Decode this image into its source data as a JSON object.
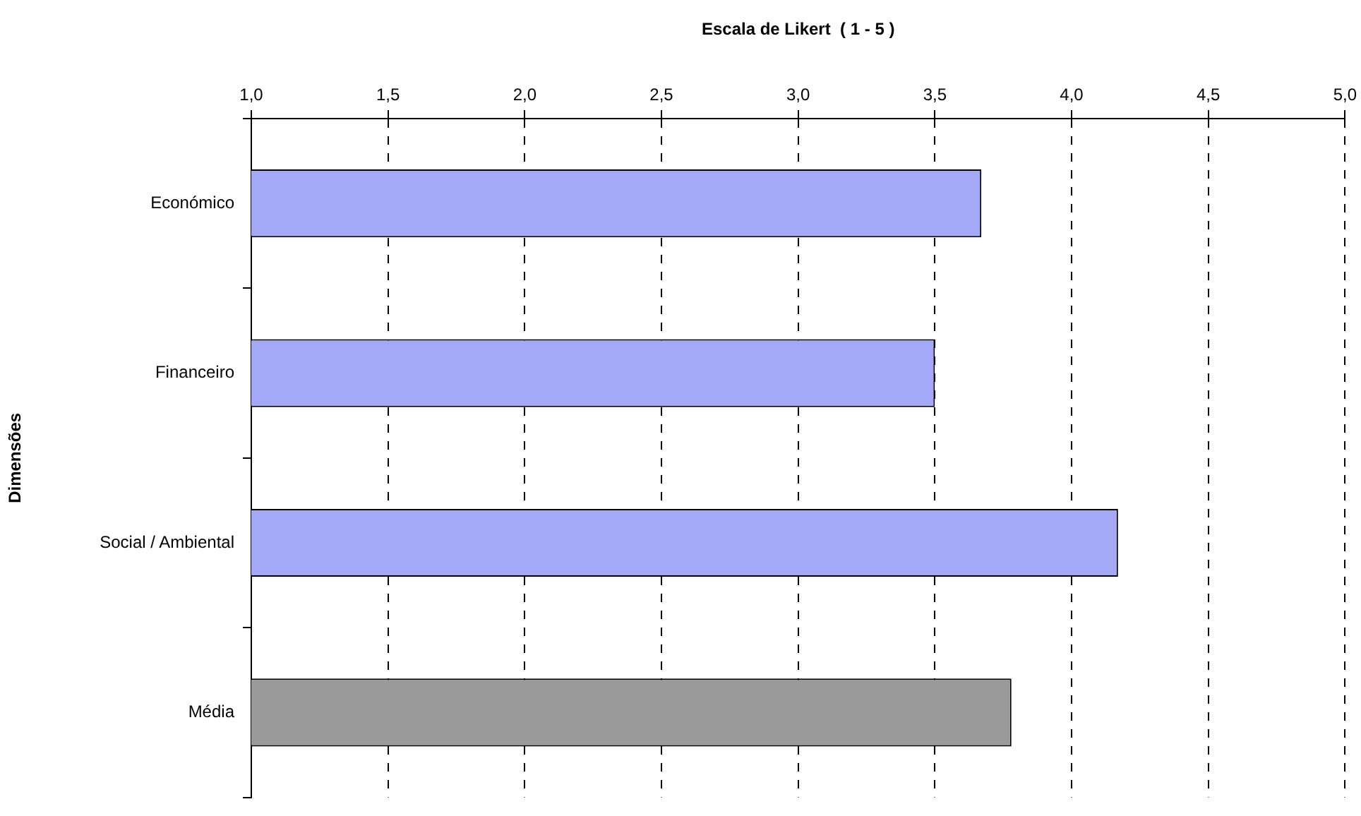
{
  "chart_data": {
    "type": "bar",
    "orientation": "horizontal",
    "xlabel": "Escala de Likert  ( 1 - 5 )",
    "ylabel": "Dimensões",
    "categories": [
      "Económico",
      "Financeiro",
      "Social / Ambiental",
      "Média"
    ],
    "values": [
      3.67,
      3.5,
      4.17,
      3.78
    ],
    "colors": [
      "#a3a8f7",
      "#a3a8f7",
      "#a3a8f7",
      "#9a9a9a"
    ],
    "xlim": [
      1,
      5
    ],
    "xticks": [
      {
        "value": 1,
        "label": "1,0"
      },
      {
        "value": 1.5,
        "label": "1,5"
      },
      {
        "value": 2,
        "label": "2,0"
      },
      {
        "value": 2.5,
        "label": "2,5"
      },
      {
        "value": 3,
        "label": "3,0"
      },
      {
        "value": 3.5,
        "label": "3,5"
      },
      {
        "value": 4,
        "label": "4,0"
      },
      {
        "value": 4.5,
        "label": "4,5"
      },
      {
        "value": 5,
        "label": "5,0"
      }
    ],
    "grid": "x",
    "legend": false
  }
}
